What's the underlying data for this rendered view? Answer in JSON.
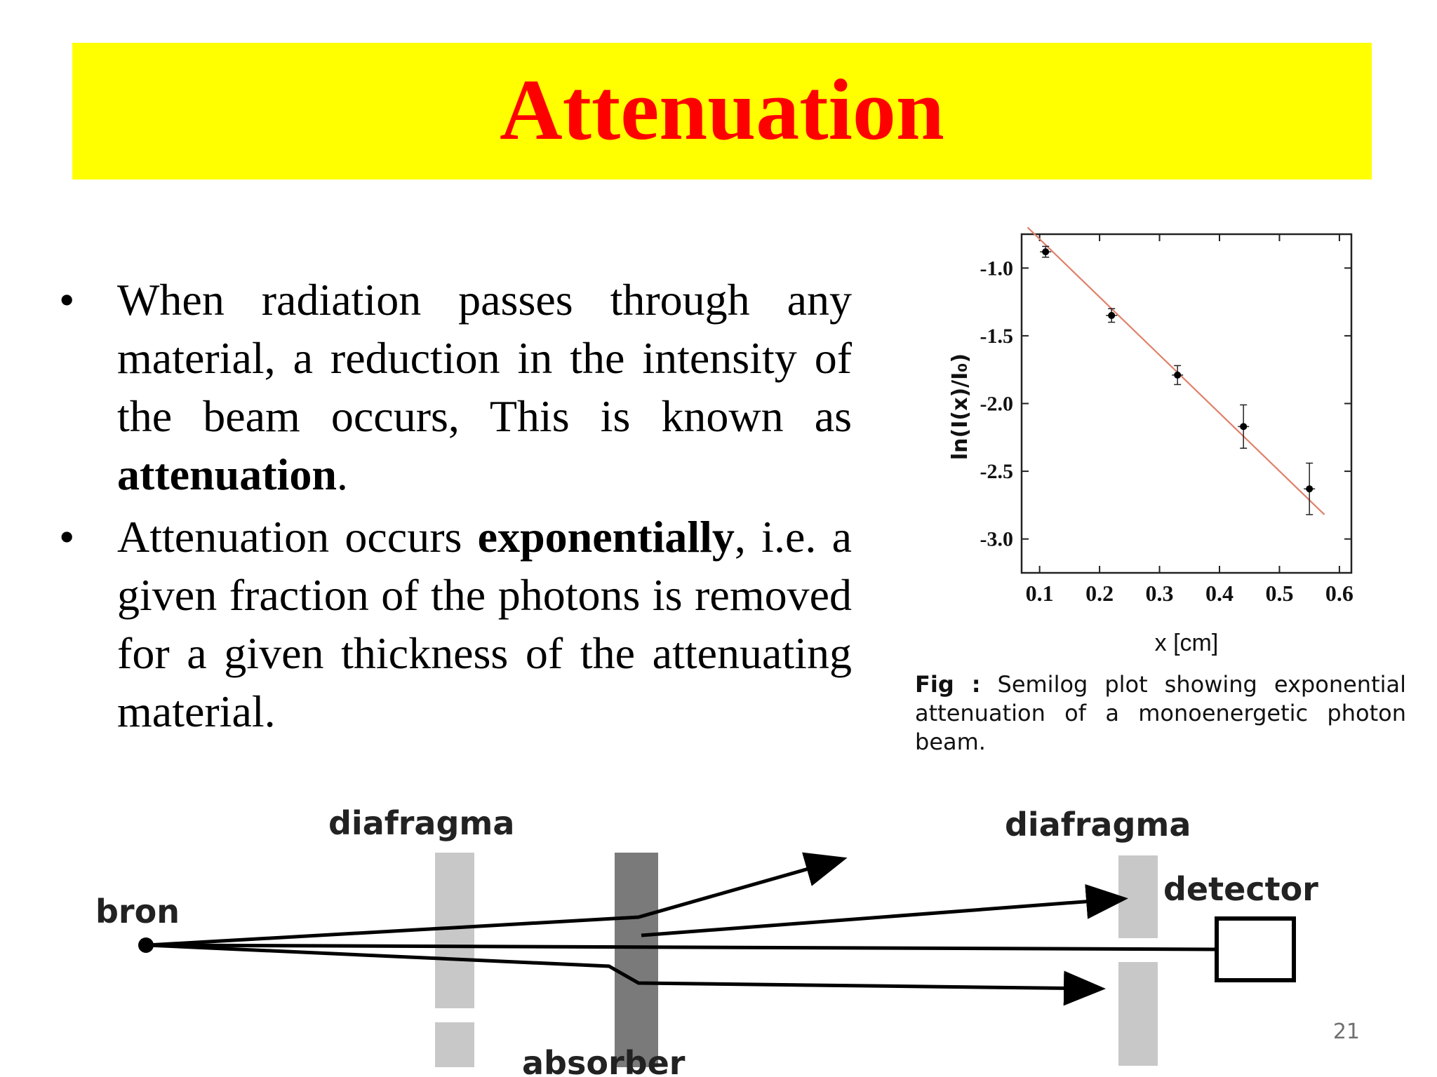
{
  "slide": {
    "title": "Attenuation",
    "page_number": "21",
    "accent_colors": {
      "title_bg": "#ffff00",
      "title_text": "#ff0000"
    }
  },
  "bullets": [
    {
      "marker": "•",
      "text_before": "When radiation passes through any material, a reduction in the intensity of the beam occurs, This is known as ",
      "bold": "attenuation",
      "text_after": "."
    },
    {
      "marker": "•",
      "text_before": "Attenuation occurs ",
      "bold": "exponentially",
      "text_after": ", i.e. a given fraction of the photons is removed for a given thickness of the attenuating material."
    }
  ],
  "figure": {
    "ylabel": "ln(I(x)/I₀)",
    "xlabel": "x [cm]",
    "caption_label": "Fig :",
    "caption_text": "Semilog plot showing exponential attenuation of a monoenergetic photon beam.",
    "chart_data": {
      "type": "scatter",
      "x": [
        0.11,
        0.22,
        0.33,
        0.44,
        0.55
      ],
      "y": [
        -0.88,
        -1.35,
        -1.79,
        -2.17,
        -2.63
      ],
      "fit_line": {
        "x": [
          0.08,
          0.575
        ],
        "y": [
          -0.7,
          -2.82
        ]
      },
      "xticks": [
        "0.1",
        "0.2",
        "0.3",
        "0.4",
        "0.5",
        "0.6"
      ],
      "yticks": [
        "-1.0",
        "-1.5",
        "-2.0",
        "-2.5",
        "-3.0"
      ],
      "xlim": [
        0.07,
        0.62
      ],
      "ylim": [
        -3.25,
        -0.75
      ],
      "fit_color": "#e0806a",
      "marker_color": "#000000"
    }
  },
  "diagram": {
    "label_diafragma_left": "diafragma",
    "label_diafragma_right": "diafragma",
    "label_source": "bron",
    "label_detector": "detector",
    "label_absorber": "absorber",
    "colors": {
      "diaphragm": "#c8c8c8",
      "absorber": "#7a7a7a"
    }
  }
}
